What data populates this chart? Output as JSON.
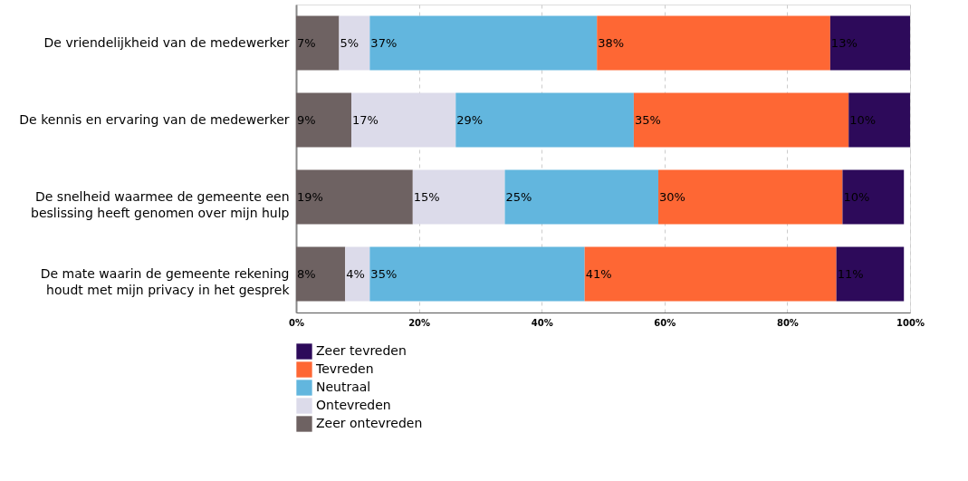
{
  "chart_data": {
    "type": "bar",
    "orientation": "horizontal",
    "stacked": true,
    "categories": [
      "De vriendelijkheid van de medewerker",
      "De kennis en ervaring van de medewerker",
      "De snelheid waarmee de gemeente een\nbeslissing heeft genomen over mijn hulp",
      "De mate waarin de gemeente rekening\nhoudt met mijn privacy in het gesprek"
    ],
    "series": [
      {
        "name": "Zeer ontevreden",
        "color": "#6e6262",
        "values": [
          7,
          9,
          19,
          8
        ],
        "value_labels": [
          "7%",
          "9%",
          "19%",
          "8%"
        ]
      },
      {
        "name": "Ontevreden",
        "color": "#dcdbea",
        "values": [
          5,
          17,
          15,
          4
        ],
        "value_labels": [
          "5%",
          "17%",
          "15%",
          "4%"
        ]
      },
      {
        "name": "Neutraal",
        "color": "#62b6de",
        "values": [
          37,
          29,
          25,
          35
        ],
        "value_labels": [
          "37%",
          "29%",
          "25%",
          "35%"
        ]
      },
      {
        "name": "Tevreden",
        "color": "#fe6734",
        "values": [
          38,
          35,
          30,
          41
        ],
        "value_labels": [
          "38%",
          "35%",
          "30%",
          "41%"
        ]
      },
      {
        "name": "Zeer tevreden",
        "color": "#2d0a5a",
        "values": [
          13,
          10,
          10,
          11
        ],
        "value_labels": [
          "13%",
          "10%",
          "10%",
          "11%"
        ]
      }
    ],
    "xlim": [
      0,
      100
    ],
    "xticks": [
      {
        "value": 0,
        "label": "0%"
      },
      {
        "value": 20,
        "label": "20%"
      },
      {
        "value": 40,
        "label": "40%"
      },
      {
        "value": 60,
        "label": "60%"
      },
      {
        "value": 80,
        "label": "80%"
      },
      {
        "value": 100,
        "label": "100%"
      }
    ],
    "grid": "x",
    "legend": "bottom"
  }
}
